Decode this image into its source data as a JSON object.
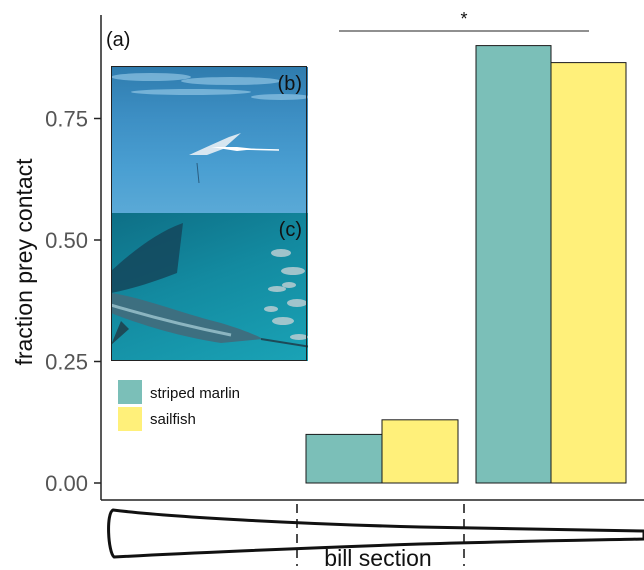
{
  "panel_label": "(a)",
  "inset_labels": {
    "b": "(b)",
    "c": "(c)"
  },
  "significance_marker": "*",
  "colors": {
    "striped_marlin": "#7bbfb8",
    "sailfish": "#fff07a",
    "bar_edge": "#1a1a1a"
  },
  "photos": {
    "b": "striped-marlin-underwater-photo",
    "c": "sailfish-underwater-photo"
  },
  "chart_data": {
    "type": "bar",
    "ylabel": "fraction prey contact",
    "xlabel": "bill section",
    "ylim": [
      0,
      0.9
    ],
    "yticks": [
      "0.00",
      "0.25",
      "0.50",
      "0.75"
    ],
    "categories": [
      "",
      ""
    ],
    "series": [
      {
        "name": "striped marlin",
        "values": [
          0.1,
          0.9
        ]
      },
      {
        "name": "sailfish",
        "values": [
          0.13,
          0.865
        ]
      }
    ],
    "legend_position": "bottom-left",
    "grid": false
  }
}
